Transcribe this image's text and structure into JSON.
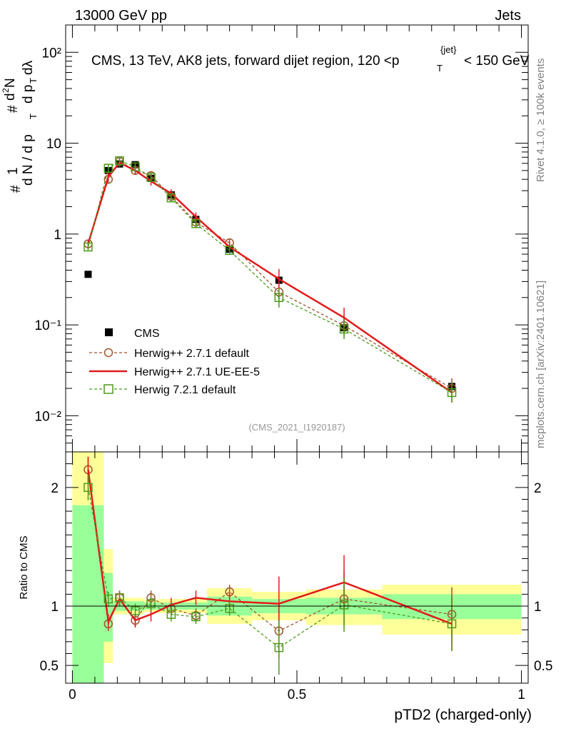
{
  "header": {
    "left": "13000 GeV pp",
    "right": "Jets"
  },
  "side_labels": {
    "rivet": "Rivet 4.1.0, ≥ 100k events",
    "mcplots": "mcplots.cern.ch [arXiv:2401.10621]"
  },
  "chart_data": [
    {
      "panel": "main",
      "type": "scatter",
      "title": "CMS, 13 TeV, AK8 jets, forward dijet region, 120 <p",
      "title_sub": "T",
      "title_sup": "{jet}",
      "title_tail": "< 150 GeV",
      "ylabel": "1 / N dN / dp_T dλ",
      "ylabel_parts": {
        "hash": "#",
        "one": "1",
        "den": "d N / d p",
        "sub": "T",
        "num2": "d",
        "sup2": "2",
        "num2b": "N",
        "den2": "d p",
        "den2b": "dλ"
      },
      "yscale": "log",
      "ylim": [
        0.004,
        200
      ],
      "xlim": [
        -0.015,
        1.015
      ],
      "ytick_labels": [
        "10",
        "2",
        "10",
        "1",
        "10",
        "-1",
        "10",
        "-2"
      ],
      "ytick_main": [
        "1"
      ],
      "ytick_values": [
        100,
        10,
        1,
        0.1,
        0.01
      ],
      "ytick_text": [
        "10²",
        "10",
        "1",
        "10⁻¹",
        "10⁻²"
      ],
      "analysis_id": "(CMS_2021_I1920187)",
      "legend": {
        "placement": "bottom-left",
        "entries": [
          "CMS",
          "Herwig++ 2.7.1 default",
          "Herwig++ 2.7.1 UE-EE-5",
          "Herwig 7.2.1 default"
        ]
      },
      "bin_edges": [
        0.0,
        0.07,
        0.09,
        0.12,
        0.16,
        0.19,
        0.25,
        0.3,
        0.4,
        0.52,
        0.69,
        1.0
      ],
      "series": [
        {
          "name": "CMS",
          "style": "data",
          "color": "#000000",
          "x": [
            0.035,
            0.08,
            0.105,
            0.14,
            0.175,
            0.22,
            0.275,
            0.35,
            0.46,
            0.605,
            0.845
          ],
          "values": [
            0.36,
            5.0,
            5.9,
            5.8,
            4.1,
            2.7,
            1.45,
            0.68,
            0.31,
            0.093,
            0.021
          ]
        },
        {
          "name": "Herwig++ 2.7.1 default",
          "style": "circle-dashed",
          "color": "#a0522d",
          "x": [
            0.035,
            0.08,
            0.105,
            0.14,
            0.175,
            0.22,
            0.275,
            0.35,
            0.46,
            0.605,
            0.845
          ],
          "values": [
            0.78,
            4.0,
            6.3,
            5.0,
            4.4,
            2.6,
            1.35,
            0.8,
            0.23,
            0.098,
            0.02
          ]
        },
        {
          "name": "Herwig++ 2.7.1 UE-EE-5",
          "style": "solid",
          "color": "#e31a1c",
          "x": [
            0.035,
            0.08,
            0.105,
            0.14,
            0.175,
            0.22,
            0.275,
            0.35,
            0.46,
            0.605,
            0.845
          ],
          "values": [
            0.78,
            4.3,
            6.1,
            5.0,
            3.8,
            2.8,
            1.55,
            0.72,
            0.32,
            0.12,
            0.018
          ]
        },
        {
          "name": "Herwig 7.2.1 default",
          "style": "square-dashed",
          "color": "#4d9a1c",
          "x": [
            0.035,
            0.08,
            0.105,
            0.14,
            0.175,
            0.22,
            0.275,
            0.35,
            0.46,
            0.605,
            0.845
          ],
          "values": [
            0.72,
            5.3,
            6.4,
            5.5,
            4.2,
            2.5,
            1.3,
            0.66,
            0.2,
            0.09,
            0.018
          ]
        }
      ]
    },
    {
      "panel": "ratio",
      "type": "scatter",
      "ylabel": "Ratio to CMS",
      "xlabel": "pTD2 (charged-only)",
      "ylim": [
        0.35,
        2.3
      ],
      "xlim": [
        -0.015,
        1.015
      ],
      "ytick_labels": [
        "2",
        "1",
        "0.5"
      ],
      "ytick_values": [
        2,
        1,
        0.5
      ],
      "xtick_labels": [
        "0",
        "0.5",
        "1"
      ],
      "xtick_values": [
        0,
        0.5,
        1
      ],
      "bands": {
        "bin_edges": [
          0.0,
          0.07,
          0.09,
          0.12,
          0.16,
          0.19,
          0.25,
          0.3,
          0.4,
          0.52,
          0.69,
          1.0
        ],
        "stat_low": [
          0.35,
          0.7,
          0.96,
          0.96,
          0.97,
          0.97,
          0.97,
          0.92,
          0.94,
          0.93,
          0.89
        ],
        "stat_high": [
          1.85,
          1.28,
          1.04,
          1.04,
          1.03,
          1.03,
          1.03,
          1.08,
          1.06,
          1.07,
          1.1
        ],
        "total_low": [
          0.35,
          0.52,
          0.93,
          0.93,
          0.95,
          0.94,
          0.94,
          0.85,
          0.88,
          0.84,
          0.76
        ],
        "total_high": [
          2.3,
          1.48,
          1.07,
          1.07,
          1.05,
          1.06,
          1.06,
          1.15,
          1.12,
          1.14,
          1.18
        ],
        "stat_color": "#99ff99",
        "total_color": "#ffff99"
      },
      "series": [
        {
          "name": "Herwig++ 2.7.1 default",
          "style": "circle-dashed",
          "color": "#a0522d",
          "x": [
            0.035,
            0.08,
            0.105,
            0.14,
            0.175,
            0.22,
            0.275,
            0.35,
            0.46,
            0.605,
            0.845
          ],
          "values": [
            2.15,
            0.85,
            1.07,
            0.88,
            1.07,
            0.98,
            0.92,
            1.12,
            0.79,
            1.06,
            0.93
          ]
        },
        {
          "name": "Herwig++ 2.7.1 UE-EE-5",
          "style": "solid",
          "color": "#e31a1c",
          "x": [
            0.035,
            0.08,
            0.105,
            0.14,
            0.175,
            0.22,
            0.275,
            0.35,
            0.46,
            0.605,
            0.845
          ],
          "values": [
            2.15,
            0.87,
            1.06,
            0.88,
            0.93,
            1.01,
            1.07,
            1.04,
            1.02,
            1.2,
            0.85
          ]
        },
        {
          "name": "Herwig 7.2.1 default",
          "style": "square-dashed",
          "color": "#4d9a1c",
          "x": [
            0.035,
            0.08,
            0.105,
            0.14,
            0.175,
            0.22,
            0.275,
            0.35,
            0.46,
            0.605,
            0.845
          ],
          "values": [
            2.0,
            1.06,
            1.07,
            0.96,
            1.02,
            0.93,
            0.91,
            0.98,
            0.65,
            1.01,
            0.85
          ]
        }
      ]
    }
  ]
}
